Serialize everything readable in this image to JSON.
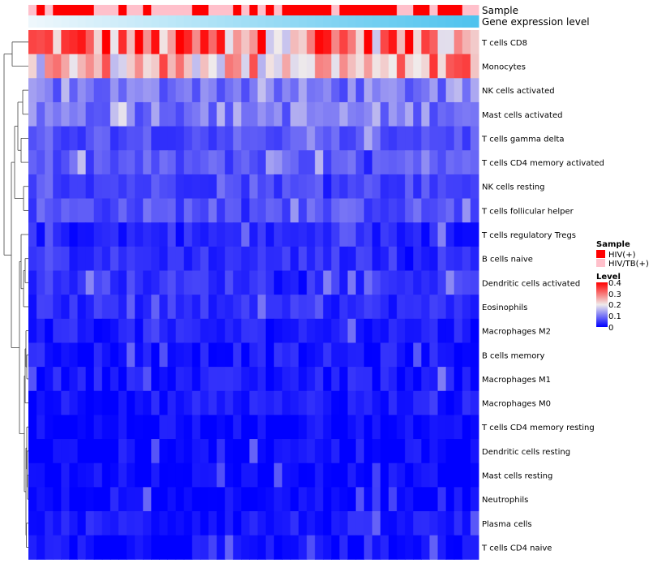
{
  "chart_data": {
    "type": "heatmap",
    "title": "",
    "annotation_rows": [
      "Sample",
      "Gene expression level"
    ],
    "sample_groups": [
      1,
      0,
      1,
      0,
      0,
      0,
      0,
      0,
      1,
      1,
      1,
      0,
      1,
      1,
      0,
      1,
      1,
      1,
      1,
      1,
      0,
      0,
      1,
      1,
      1,
      0,
      1,
      0,
      1,
      0,
      1,
      0,
      0,
      0,
      0,
      0,
      0,
      1,
      0,
      0,
      0,
      0,
      0,
      0,
      0,
      1,
      1,
      0,
      0,
      1,
      0,
      0,
      0,
      1,
      1
    ],
    "legend_sample": {
      "title": "Sample",
      "items": [
        {
          "label": "HIV(+)",
          "color": "#FF0000"
        },
        {
          "label": "HIV/TB(+)",
          "color": "#FFC0CB"
        }
      ]
    },
    "legend_level": {
      "title": "Level",
      "min": 0,
      "max": 0.4,
      "ticks": [
        "0.4",
        "0.3",
        "0.2",
        "0.1",
        "0"
      ]
    },
    "color_scale": {
      "low": "#0000FF",
      "mid": "#F0EBEB",
      "high": "#FF0000",
      "mid_value": 0.2
    },
    "expression_gradient": {
      "start": "#EEF7FC",
      "end": "#4FC3EE"
    },
    "rows": [
      {
        "label": "T cells CD8",
        "base": 0.3
      },
      {
        "label": "Monocytes",
        "base": 0.24
      },
      {
        "label": "NK cells activated",
        "base": 0.1
      },
      {
        "label": "Mast cells activated",
        "base": 0.11
      },
      {
        "label": "T cells gamma delta",
        "base": 0.07
      },
      {
        "label": "T cells CD4 memory activated",
        "base": 0.07
      },
      {
        "label": "NK cells resting",
        "base": 0.06
      },
      {
        "label": "T cells follicular helper",
        "base": 0.07
      },
      {
        "label": "T cells regulatory  Tregs",
        "base": 0.03
      },
      {
        "label": "B cells naive",
        "base": 0.04
      },
      {
        "label": "Dendritic cells activated",
        "base": 0.045
      },
      {
        "label": "Eosinophils",
        "base": 0.035
      },
      {
        "label": "Macrophages M2",
        "base": 0.025
      },
      {
        "label": "B cells memory",
        "base": 0.02
      },
      {
        "label": "Macrophages M1",
        "base": 0.02
      },
      {
        "label": "Macrophages M0",
        "base": 0.018
      },
      {
        "label": "T cells CD4 memory resting",
        "base": 0.005
      },
      {
        "label": "Dendritic cells resting",
        "base": 0.005
      },
      {
        "label": "Mast cells resting",
        "base": 0.003
      },
      {
        "label": "Neutrophils",
        "base": 0.003
      },
      {
        "label": "Plasma cells",
        "base": 0.02
      },
      {
        "label": "T cells CD4 naive",
        "base": 0.008
      }
    ]
  }
}
